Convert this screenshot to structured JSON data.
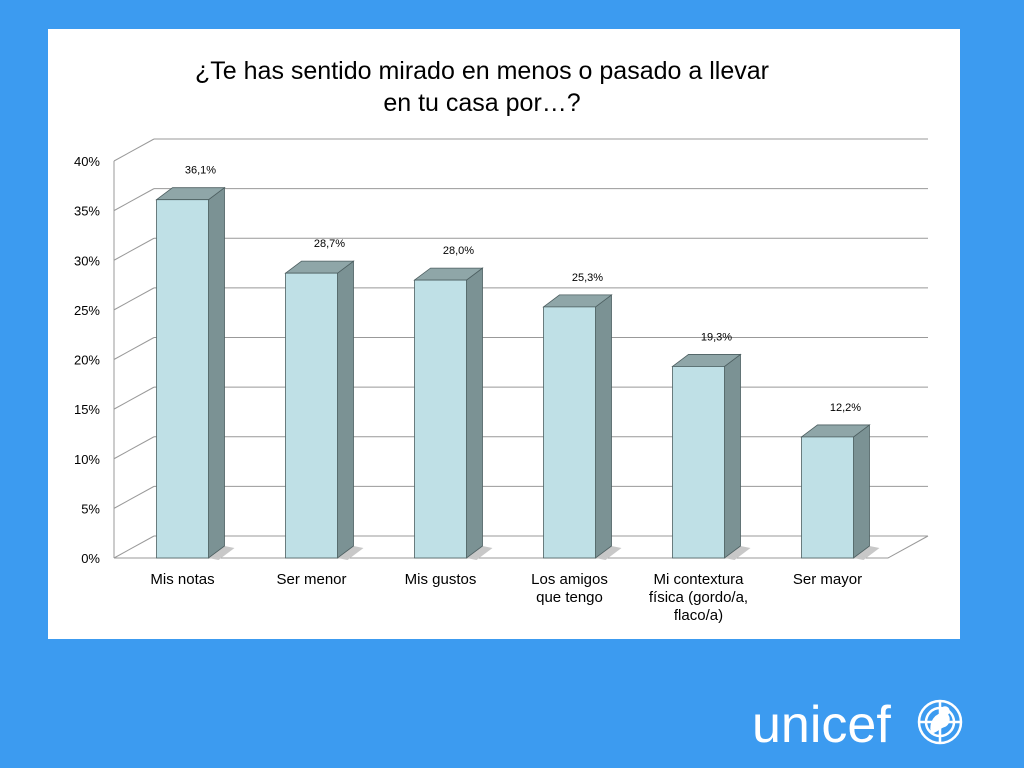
{
  "chart_data": {
    "type": "bar",
    "title_lines": [
      "¿Te has sentido mirado en menos o pasado a llevar",
      "en tu casa por…?"
    ],
    "categories": [
      [
        "Mis notas"
      ],
      [
        "Ser menor"
      ],
      [
        "Mis gustos"
      ],
      [
        "Los amigos",
        "que tengo"
      ],
      [
        "Mi contextura",
        "física (gordo/a,",
        "flaco/a)"
      ],
      [
        "Ser mayor"
      ]
    ],
    "values": [
      36.1,
      28.7,
      28.0,
      25.3,
      19.3,
      12.2
    ],
    "data_labels": [
      "36,1%",
      "28,7%",
      "28,0%",
      "25,3%",
      "19,3%",
      "12,2%"
    ],
    "y_ticks": [
      "0%",
      "5%",
      "10%",
      "15%",
      "20%",
      "25%",
      "30%",
      "35%",
      "40%"
    ],
    "ylim": [
      0,
      40
    ],
    "grid": true,
    "legend": "none",
    "bar_color": "#bfe0e6",
    "bar_side_color": "#7b9294"
  },
  "logo": {
    "text": "unicef",
    "color": "#ffffff"
  },
  "colors": {
    "background": "#3c9bf0",
    "panel": "#ffffff"
  }
}
